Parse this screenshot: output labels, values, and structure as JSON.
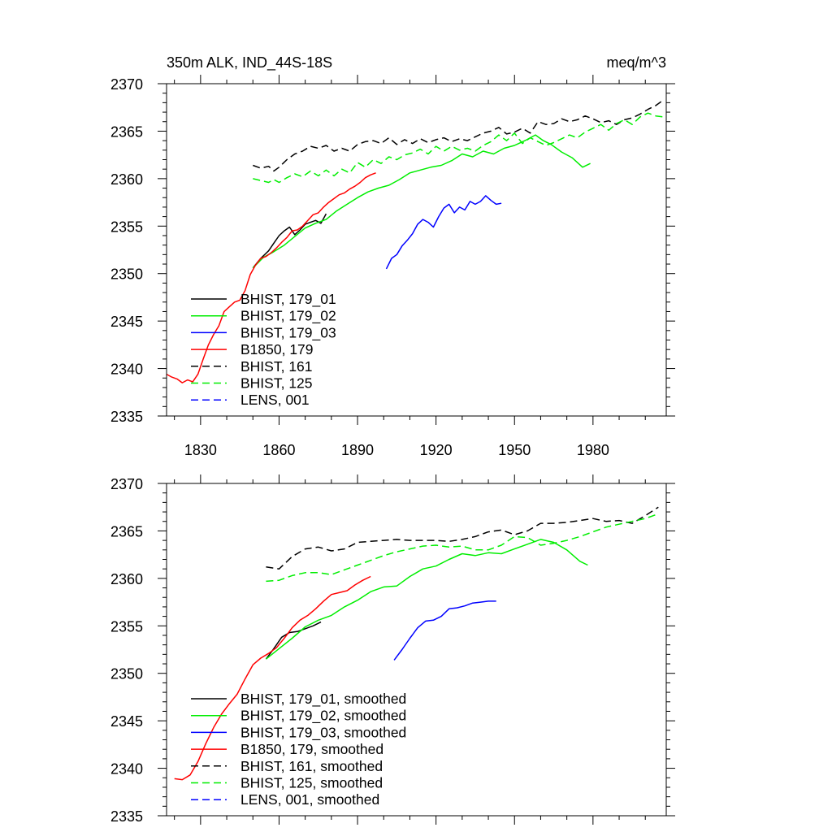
{
  "chart_data": [
    {
      "type": "line",
      "title_left": "350m ALK, IND_44S-18S",
      "title_right": "meq/m^3",
      "xlim": [
        1817,
        2008
      ],
      "ylim": [
        2335,
        2370
      ],
      "x_ticks": [
        1830,
        1860,
        1890,
        1920,
        1950,
        1980
      ],
      "y_ticks": [
        2335,
        2340,
        2345,
        2350,
        2355,
        2360,
        2365,
        2370
      ],
      "show_x_tick_labels": true,
      "legend_position": "bottom-left",
      "series": [
        {
          "name": "BHIST, 179_01",
          "color": "#000000",
          "dash": "solid",
          "x": [
            1850,
            1853,
            1856,
            1858,
            1860,
            1862,
            1864,
            1866,
            1868,
            1870,
            1872,
            1874,
            1876,
            1878
          ],
          "y": [
            2350.6,
            2351.6,
            2352.4,
            2353.2,
            2354.0,
            2354.5,
            2354.9,
            2354.1,
            2354.6,
            2355.2,
            2355.4,
            2355.6,
            2355.3,
            2356.3
          ]
        },
        {
          "name": "BHIST, 179_02",
          "color": "#00ee00",
          "dash": "solid",
          "x": [
            1850,
            1854,
            1858,
            1862,
            1866,
            1870,
            1874,
            1878,
            1882,
            1886,
            1890,
            1894,
            1898,
            1902,
            1906,
            1910,
            1914,
            1918,
            1922,
            1926,
            1930,
            1934,
            1938,
            1942,
            1946,
            1950,
            1954,
            1958,
            1961,
            1964,
            1968,
            1972,
            1976,
            1979
          ],
          "y": [
            2350.6,
            2351.7,
            2352.3,
            2353.0,
            2353.9,
            2354.8,
            2355.3,
            2355.7,
            2356.6,
            2357.3,
            2358.0,
            2358.6,
            2359.0,
            2359.3,
            2359.9,
            2360.6,
            2360.9,
            2361.2,
            2361.4,
            2361.9,
            2362.6,
            2362.3,
            2362.9,
            2362.6,
            2363.2,
            2363.5,
            2364.0,
            2364.6,
            2364.0,
            2363.6,
            2362.8,
            2362.2,
            2361.2,
            2361.6
          ]
        },
        {
          "name": "BHIST, 179_03",
          "color": "#0000ff",
          "dash": "solid",
          "x": [
            1901,
            1903,
            1905,
            1907,
            1909,
            1911,
            1913,
            1915,
            1917,
            1919,
            1921,
            1923,
            1925,
            1927,
            1929,
            1931,
            1933,
            1935,
            1937,
            1939,
            1941,
            1943,
            1945
          ],
          "y": [
            2350.5,
            2351.6,
            2352.0,
            2352.9,
            2353.5,
            2354.2,
            2355.2,
            2355.7,
            2355.4,
            2354.9,
            2356.0,
            2356.9,
            2357.3,
            2356.4,
            2357.0,
            2356.7,
            2357.6,
            2357.3,
            2357.6,
            2358.2,
            2357.7,
            2357.3,
            2357.4
          ]
        },
        {
          "name": "B1850, 179",
          "color": "#ff0000",
          "dash": "solid",
          "x": [
            1817,
            1819,
            1821,
            1823,
            1825,
            1827,
            1829,
            1831,
            1833,
            1835,
            1837,
            1839,
            1841,
            1843,
            1845,
            1847,
            1849,
            1851,
            1853,
            1855,
            1857,
            1859,
            1861,
            1863,
            1865,
            1867,
            1869,
            1871,
            1873,
            1875,
            1877,
            1879,
            1881,
            1883,
            1885,
            1887,
            1889,
            1891,
            1893,
            1895,
            1897
          ],
          "y": [
            2339.4,
            2339.1,
            2338.9,
            2338.5,
            2338.8,
            2338.6,
            2339.4,
            2341.0,
            2342.5,
            2343.6,
            2344.5,
            2346.0,
            2346.5,
            2347.0,
            2347.2,
            2348.2,
            2349.9,
            2350.9,
            2351.6,
            2351.8,
            2352.2,
            2352.7,
            2353.3,
            2353.8,
            2354.5,
            2354.6,
            2355.0,
            2355.6,
            2356.2,
            2356.4,
            2357.0,
            2357.5,
            2357.9,
            2358.3,
            2358.5,
            2358.9,
            2359.2,
            2359.6,
            2360.1,
            2360.4,
            2360.6
          ]
        },
        {
          "name": "BHIST, 161",
          "color": "#000000",
          "dash": "dashed",
          "x": [
            1850,
            1853,
            1856,
            1858,
            1860,
            1863,
            1866,
            1869,
            1872,
            1875,
            1878,
            1881,
            1884,
            1887,
            1890,
            1893,
            1896,
            1899,
            1902,
            1905,
            1908,
            1911,
            1914,
            1917,
            1920,
            1923,
            1926,
            1929,
            1932,
            1935,
            1938,
            1941,
            1944,
            1947,
            1950,
            1953,
            1956,
            1959,
            1962,
            1965,
            1968,
            1971,
            1974,
            1977,
            1980,
            1983,
            1986,
            1989,
            1992,
            1995,
            1998,
            2001,
            2004,
            2007
          ],
          "y": [
            2361.4,
            2361.1,
            2361.3,
            2360.8,
            2361.2,
            2362.0,
            2362.6,
            2362.9,
            2363.4,
            2363.2,
            2363.5,
            2362.9,
            2363.2,
            2362.9,
            2363.6,
            2363.9,
            2364.0,
            2363.7,
            2364.3,
            2363.6,
            2364.1,
            2363.7,
            2364.2,
            2363.8,
            2364.1,
            2364.3,
            2363.9,
            2364.2,
            2364.0,
            2364.4,
            2364.8,
            2365.0,
            2365.4,
            2364.7,
            2364.9,
            2365.3,
            2364.8,
            2366.0,
            2365.7,
            2365.8,
            2366.3,
            2366.0,
            2366.2,
            2366.6,
            2366.3,
            2365.9,
            2366.1,
            2365.7,
            2366.2,
            2366.4,
            2366.8,
            2367.3,
            2367.7,
            2368.3
          ]
        },
        {
          "name": "BHIST, 125",
          "color": "#00ee00",
          "dash": "dashed",
          "x": [
            1850,
            1853,
            1856,
            1858,
            1860,
            1863,
            1866,
            1869,
            1872,
            1875,
            1878,
            1881,
            1884,
            1887,
            1890,
            1893,
            1896,
            1899,
            1902,
            1905,
            1908,
            1911,
            1914,
            1917,
            1920,
            1923,
            1926,
            1929,
            1932,
            1935,
            1938,
            1941,
            1944,
            1947,
            1950,
            1953,
            1956,
            1959,
            1962,
            1965,
            1968,
            1971,
            1974,
            1977,
            1980,
            1983,
            1986,
            1989,
            1992,
            1995,
            1998,
            2001,
            2004,
            2007
          ],
          "y": [
            2360.0,
            2359.8,
            2359.6,
            2359.9,
            2359.6,
            2360.1,
            2360.5,
            2360.2,
            2360.8,
            2360.3,
            2360.9,
            2360.3,
            2361.0,
            2360.6,
            2361.7,
            2361.2,
            2362.0,
            2361.6,
            2362.3,
            2362.0,
            2362.5,
            2362.7,
            2363.1,
            2362.6,
            2363.4,
            2362.9,
            2363.4,
            2363.0,
            2363.2,
            2362.9,
            2363.5,
            2363.9,
            2364.6,
            2364.0,
            2364.8,
            2363.7,
            2364.3,
            2363.9,
            2363.5,
            2363.8,
            2364.2,
            2364.6,
            2364.3,
            2364.9,
            2365.3,
            2365.7,
            2365.1,
            2365.8,
            2366.2,
            2365.7,
            2366.5,
            2366.9,
            2366.6,
            2366.5
          ]
        }
      ],
      "legend": [
        {
          "label": "BHIST, 179_01",
          "color": "#000000",
          "dash": "solid"
        },
        {
          "label": "BHIST, 179_02",
          "color": "#00ee00",
          "dash": "solid"
        },
        {
          "label": "BHIST, 179_03",
          "color": "#0000ff",
          "dash": "solid"
        },
        {
          "label": "B1850, 179",
          "color": "#ff0000",
          "dash": "solid"
        },
        {
          "label": "BHIST, 161",
          "color": "#000000",
          "dash": "dashed"
        },
        {
          "label": "BHIST, 125",
          "color": "#00ee00",
          "dash": "dashed"
        },
        {
          "label": "LENS, 001",
          "color": "#0000ff",
          "dash": "dashed"
        }
      ]
    },
    {
      "type": "line",
      "title_left": "",
      "title_right": "",
      "xlim": [
        1817,
        2008
      ],
      "ylim": [
        2335,
        2370
      ],
      "x_ticks": [
        1830,
        1860,
        1890,
        1920,
        1950,
        1980
      ],
      "y_ticks": [
        2335,
        2340,
        2345,
        2350,
        2355,
        2360,
        2365,
        2370
      ],
      "show_x_tick_labels": false,
      "legend_position": "bottom-left",
      "series": [
        {
          "name": "BHIST, 179_01, smoothed",
          "color": "#000000",
          "dash": "solid",
          "x": [
            1855,
            1858,
            1861,
            1864,
            1867,
            1870,
            1873,
            1876
          ],
          "y": [
            2351.5,
            2352.6,
            2353.8,
            2354.3,
            2354.4,
            2354.7,
            2355.0,
            2355.4
          ]
        },
        {
          "name": "BHIST, 179_02, smoothed",
          "color": "#00ee00",
          "dash": "solid",
          "x": [
            1855,
            1860,
            1865,
            1870,
            1875,
            1880,
            1885,
            1890,
            1895,
            1900,
            1905,
            1910,
            1915,
            1920,
            1925,
            1930,
            1935,
            1940,
            1945,
            1950,
            1955,
            1960,
            1965,
            1970,
            1975,
            1978
          ],
          "y": [
            2351.5,
            2352.6,
            2353.7,
            2354.9,
            2355.6,
            2356.1,
            2357.0,
            2357.7,
            2358.6,
            2359.1,
            2359.2,
            2360.2,
            2361.0,
            2361.3,
            2362.0,
            2362.6,
            2362.4,
            2362.7,
            2362.6,
            2363.1,
            2363.6,
            2364.1,
            2363.8,
            2363.0,
            2361.8,
            2361.4
          ]
        },
        {
          "name": "BHIST, 179_03, smoothed",
          "color": "#0000ff",
          "dash": "solid",
          "x": [
            1904,
            1907,
            1910,
            1913,
            1916,
            1919,
            1922,
            1925,
            1928,
            1931,
            1934,
            1937,
            1940,
            1943
          ],
          "y": [
            2351.4,
            2352.5,
            2353.7,
            2354.8,
            2355.5,
            2355.6,
            2356.0,
            2356.8,
            2356.9,
            2357.1,
            2357.4,
            2357.5,
            2357.6,
            2357.6
          ]
        },
        {
          "name": "B1850, 179, smoothed",
          "color": "#ff0000",
          "dash": "solid",
          "x": [
            1820,
            1823,
            1826,
            1829,
            1832,
            1835,
            1838,
            1841,
            1844,
            1847,
            1850,
            1853,
            1856,
            1859,
            1862,
            1865,
            1868,
            1871,
            1874,
            1877,
            1880,
            1883,
            1886,
            1889,
            1892,
            1895
          ],
          "y": [
            2338.9,
            2338.8,
            2339.3,
            2340.7,
            2342.6,
            2344.3,
            2345.7,
            2346.8,
            2347.8,
            2349.4,
            2350.9,
            2351.6,
            2352.1,
            2352.7,
            2353.7,
            2354.8,
            2355.6,
            2356.1,
            2356.8,
            2357.6,
            2358.3,
            2358.5,
            2358.7,
            2359.3,
            2359.8,
            2360.2
          ]
        },
        {
          "name": "BHIST, 161, smoothed",
          "color": "#000000",
          "dash": "dashed",
          "x": [
            1855,
            1860,
            1865,
            1870,
            1875,
            1880,
            1885,
            1890,
            1895,
            1900,
            1905,
            1910,
            1915,
            1920,
            1925,
            1930,
            1935,
            1940,
            1945,
            1950,
            1955,
            1960,
            1965,
            1970,
            1975,
            1980,
            1985,
            1990,
            1995,
            2000,
            2005
          ],
          "y": [
            2361.2,
            2361.0,
            2362.3,
            2363.1,
            2363.3,
            2362.9,
            2363.1,
            2363.8,
            2363.9,
            2364.0,
            2364.1,
            2364.0,
            2364.0,
            2364.0,
            2363.9,
            2364.1,
            2364.4,
            2364.9,
            2365.1,
            2364.6,
            2365.0,
            2365.8,
            2365.8,
            2365.9,
            2366.1,
            2366.3,
            2366.0,
            2366.1,
            2365.8,
            2366.6,
            2367.5
          ]
        },
        {
          "name": "BHIST, 125, smoothed",
          "color": "#00ee00",
          "dash": "dashed",
          "x": [
            1855,
            1860,
            1865,
            1870,
            1875,
            1880,
            1885,
            1890,
            1895,
            1900,
            1905,
            1910,
            1915,
            1920,
            1925,
            1930,
            1935,
            1940,
            1945,
            1950,
            1955,
            1960,
            1965,
            1970,
            1975,
            1980,
            1985,
            1990,
            1995,
            2000,
            2005
          ],
          "y": [
            2359.7,
            2359.8,
            2360.3,
            2360.6,
            2360.6,
            2360.4,
            2360.9,
            2361.4,
            2361.9,
            2362.4,
            2362.8,
            2363.1,
            2363.4,
            2363.5,
            2363.3,
            2363.4,
            2363.0,
            2363.0,
            2363.5,
            2364.4,
            2364.3,
            2363.5,
            2363.7,
            2364.0,
            2364.4,
            2364.9,
            2365.4,
            2365.7,
            2366.0,
            2366.3,
            2366.8
          ]
        }
      ],
      "legend": [
        {
          "label": "BHIST, 179_01, smoothed",
          "color": "#000000",
          "dash": "solid"
        },
        {
          "label": "BHIST, 179_02, smoothed",
          "color": "#00ee00",
          "dash": "solid"
        },
        {
          "label": "BHIST, 179_03, smoothed",
          "color": "#0000ff",
          "dash": "solid"
        },
        {
          "label": "B1850, 179, smoothed",
          "color": "#ff0000",
          "dash": "solid"
        },
        {
          "label": "BHIST, 161, smoothed",
          "color": "#000000",
          "dash": "dashed"
        },
        {
          "label": "BHIST, 125, smoothed",
          "color": "#00ee00",
          "dash": "dashed"
        },
        {
          "label": "LENS, 001, smoothed",
          "color": "#0000ff",
          "dash": "dashed"
        }
      ]
    }
  ]
}
